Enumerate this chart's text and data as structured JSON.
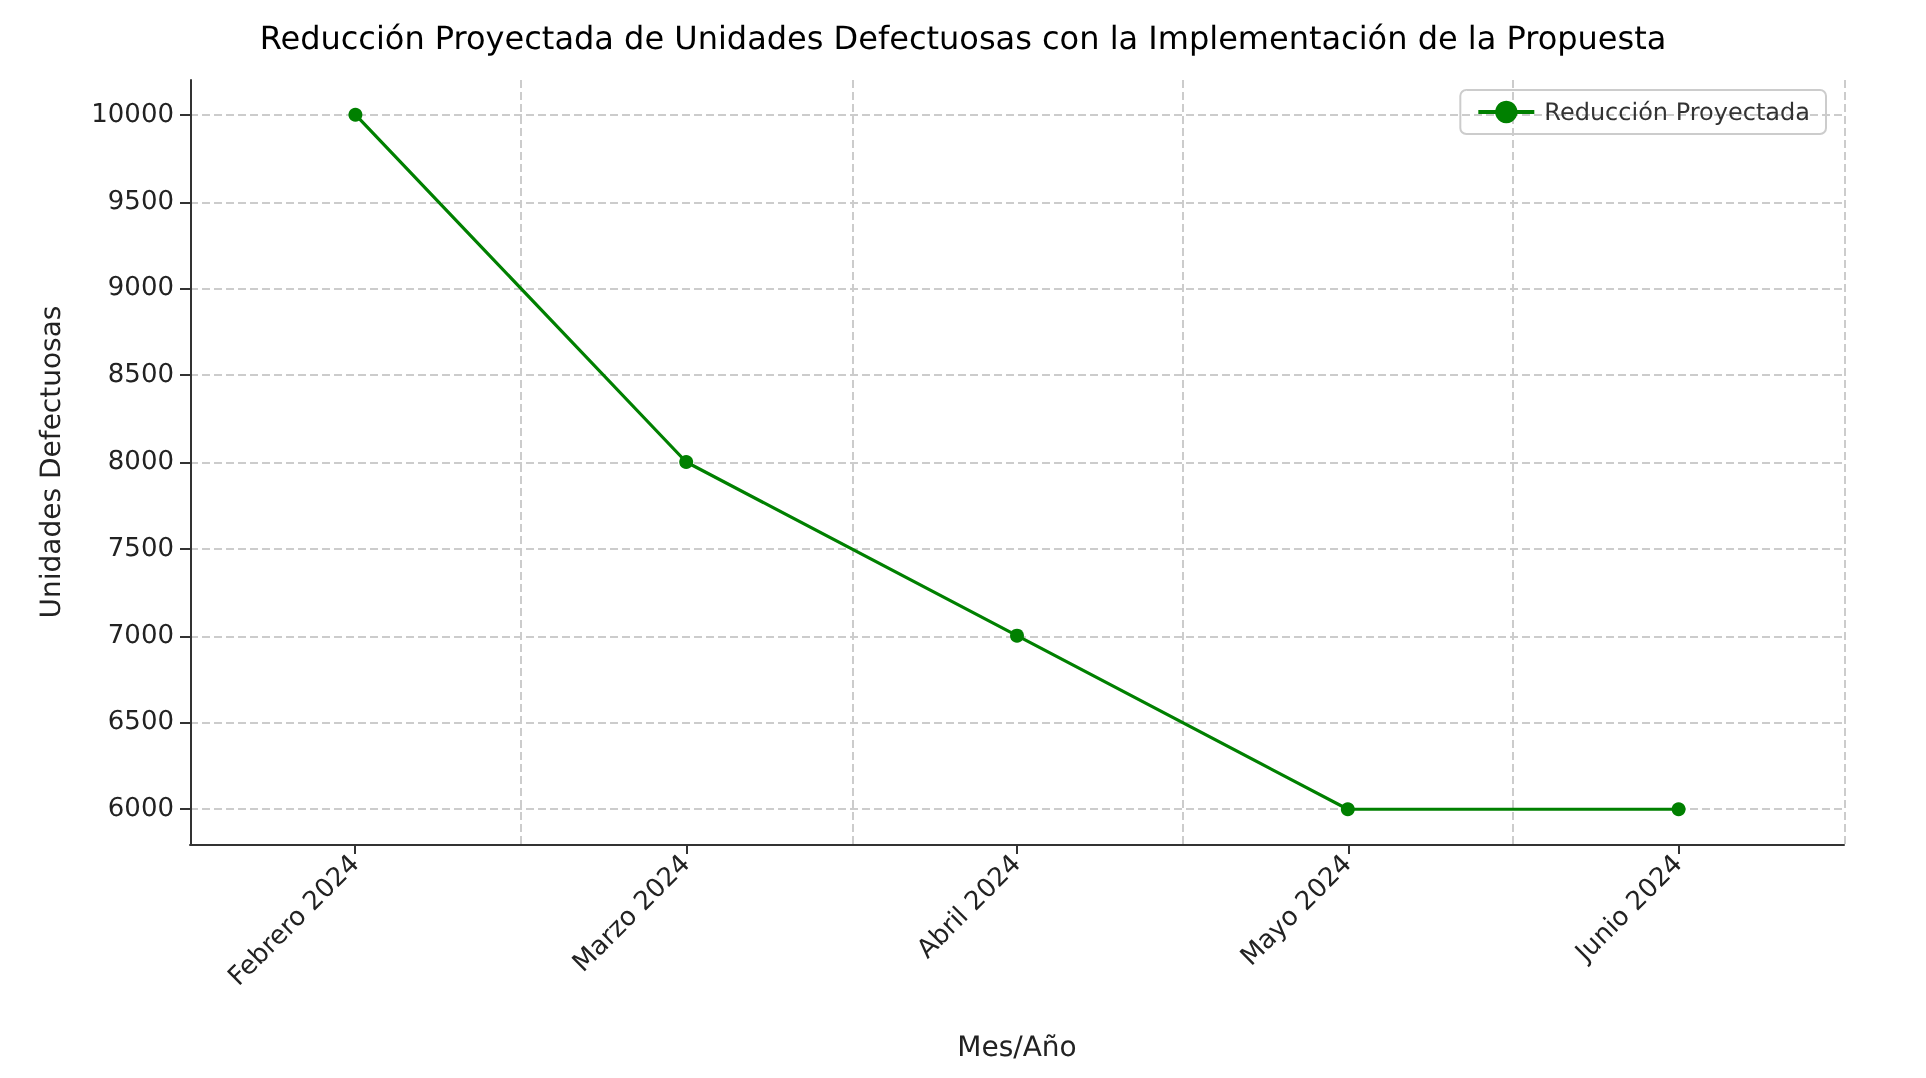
{
  "chart_data": {
    "type": "line",
    "title": "Reducción Proyectada de Unidades Defectuosas con la Implementación de la Propuesta",
    "xlabel": "Mes/Año",
    "ylabel": "Unidades Defectuosas",
    "categories": [
      "Febrero 2024",
      "Marzo 2024",
      "Abril 2024",
      "Mayo 2024",
      "Junio 2024"
    ],
    "series": [
      {
        "name": "Reducción Proyectada",
        "color": "#008000",
        "values": [
          10000,
          8000,
          7000,
          6000,
          6000
        ]
      }
    ],
    "ylim": [
      5800,
      10200
    ],
    "yticks": [
      6000,
      6500,
      7000,
      7500,
      8000,
      8500,
      9000,
      9500,
      10000
    ],
    "grid": true,
    "legend": "top right",
    "marker": "circle",
    "line_style": "solid"
  }
}
